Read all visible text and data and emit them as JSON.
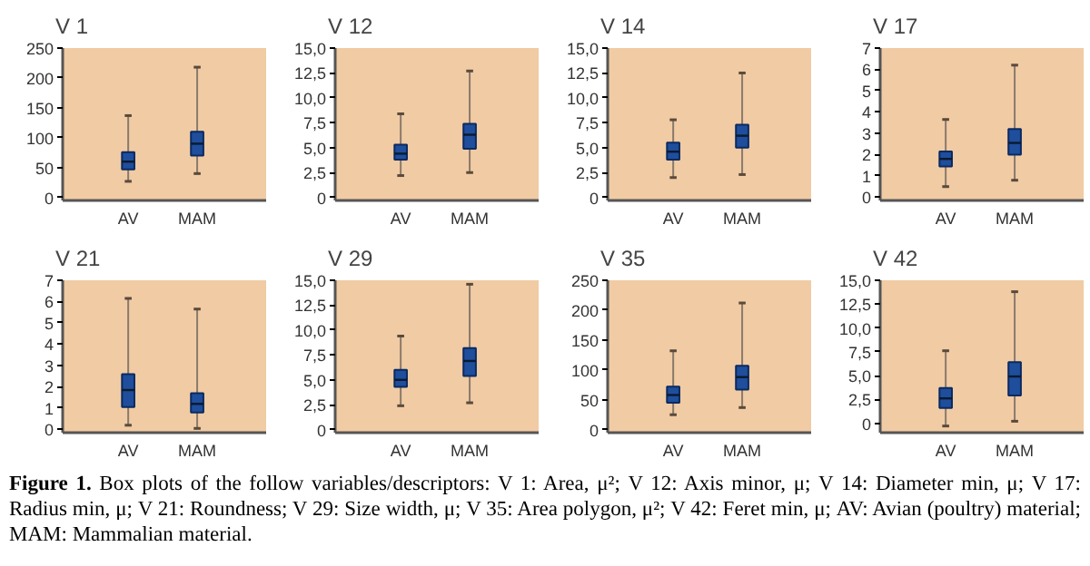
{
  "chart_data": [
    {
      "type": "box",
      "title": "V 1",
      "categories": [
        "AV",
        "MAM"
      ],
      "color": "#1f4e9c",
      "grid": false,
      "ylim": [
        -5,
        250
      ],
      "yticks": [
        0,
        50,
        100,
        150,
        200,
        250
      ],
      "boxes": [
        {
          "low": 27,
          "q1": 47,
          "median": 60,
          "q3": 76,
          "high": 137
        },
        {
          "low": 40,
          "q1": 70,
          "median": 90,
          "q3": 110,
          "high": 218
        }
      ]
    },
    {
      "type": "box",
      "title": "V 12",
      "categories": [
        "AV",
        "MAM"
      ],
      "color": "#1f4e9c",
      "grid": false,
      "ylim": [
        -0.3,
        15
      ],
      "yticks": [
        0,
        {
          "value": 2.5,
          "label": "2,5"
        },
        {
          "value": 5,
          "label": "5,0"
        },
        {
          "value": 7.5,
          "label": "7,5"
        },
        {
          "value": 10,
          "label": "10,0"
        },
        {
          "value": 12.5,
          "label": "12,5"
        },
        {
          "value": 15,
          "label": "15,0"
        }
      ],
      "boxes": [
        {
          "low": 2.2,
          "q1": 3.8,
          "median": 4.4,
          "q3": 5.3,
          "high": 8.4
        },
        {
          "low": 2.5,
          "q1": 4.9,
          "median": 6.3,
          "q3": 7.4,
          "high": 12.7
        }
      ]
    },
    {
      "type": "box",
      "title": "V 14",
      "categories": [
        "AV",
        "MAM"
      ],
      "color": "#1f4e9c",
      "grid": false,
      "ylim": [
        -0.3,
        15
      ],
      "yticks": [
        0,
        {
          "value": 2.5,
          "label": "2,5"
        },
        {
          "value": 5,
          "label": "5,0"
        },
        {
          "value": 7.5,
          "label": "7,5"
        },
        {
          "value": 10,
          "label": "10,0"
        },
        {
          "value": 12.5,
          "label": "12,5"
        },
        {
          "value": 15,
          "label": "15,0"
        }
      ],
      "boxes": [
        {
          "low": 2.0,
          "q1": 3.8,
          "median": 4.6,
          "q3": 5.5,
          "high": 7.8
        },
        {
          "low": 2.3,
          "q1": 5.0,
          "median": 6.2,
          "q3": 7.3,
          "high": 12.5
        }
      ]
    },
    {
      "type": "box",
      "title": "V 17",
      "categories": [
        "AV",
        "MAM"
      ],
      "color": "#1f4e9c",
      "grid": false,
      "ylim": [
        -0.15,
        7
      ],
      "yticks": [
        0,
        1,
        2,
        3,
        4,
        5,
        6,
        7
      ],
      "boxes": [
        {
          "low": 0.5,
          "q1": 1.45,
          "median": 1.8,
          "q3": 2.15,
          "high": 3.65
        },
        {
          "low": 0.8,
          "q1": 2.0,
          "median": 2.55,
          "q3": 3.2,
          "high": 6.2
        }
      ]
    },
    {
      "type": "box",
      "title": "V 21",
      "categories": [
        "AV",
        "MAM"
      ],
      "color": "#1f4e9c",
      "grid": false,
      "ylim": [
        -0.15,
        7
      ],
      "yticks": [
        0,
        1,
        2,
        3,
        4,
        5,
        6,
        7
      ],
      "boxes": [
        {
          "low": 0.2,
          "q1": 1.05,
          "median": 1.85,
          "q3": 2.6,
          "high": 6.15
        },
        {
          "low": 0.05,
          "q1": 0.8,
          "median": 1.2,
          "q3": 1.7,
          "high": 5.65
        }
      ]
    },
    {
      "type": "box",
      "title": "V 29",
      "categories": [
        "AV",
        "MAM"
      ],
      "color": "#1f4e9c",
      "grid": false,
      "ylim": [
        -0.3,
        15
      ],
      "yticks": [
        0,
        {
          "value": 2.5,
          "label": "2,5"
        },
        {
          "value": 5,
          "label": "5,0"
        },
        {
          "value": 7.5,
          "label": "7,5"
        },
        {
          "value": 10,
          "label": "10,0"
        },
        {
          "value": 12.5,
          "label": "12,5"
        },
        {
          "value": 15,
          "label": "15,0"
        }
      ],
      "boxes": [
        {
          "low": 2.4,
          "q1": 4.3,
          "median": 5.0,
          "q3": 6.0,
          "high": 9.4
        },
        {
          "low": 2.7,
          "q1": 5.4,
          "median": 6.9,
          "q3": 8.2,
          "high": 14.6
        }
      ]
    },
    {
      "type": "box",
      "title": "V 35",
      "categories": [
        "AV",
        "MAM"
      ],
      "color": "#1f4e9c",
      "grid": false,
      "ylim": [
        -5,
        250
      ],
      "yticks": [
        0,
        50,
        100,
        150,
        200,
        250
      ],
      "boxes": [
        {
          "low": 25,
          "q1": 45,
          "median": 58,
          "q3": 72,
          "high": 132
        },
        {
          "low": 37,
          "q1": 67,
          "median": 88,
          "q3": 107,
          "high": 212
        }
      ]
    },
    {
      "type": "box",
      "title": "V 42",
      "categories": [
        "AV",
        "MAM"
      ],
      "color": "#1f4e9c",
      "grid": false,
      "ylim": [
        -1,
        15
      ],
      "yticks": [
        0,
        {
          "value": 2.5,
          "label": "2,5"
        },
        {
          "value": 5,
          "label": "5,0"
        },
        {
          "value": 7.5,
          "label": "7,5"
        },
        {
          "value": 10,
          "label": "10,0"
        },
        {
          "value": 12.5,
          "label": "12,5"
        },
        {
          "value": 15,
          "label": "15,0"
        }
      ],
      "boxes": [
        {
          "low": -0.3,
          "q1": 1.6,
          "median": 2.6,
          "q3": 3.7,
          "high": 7.6
        },
        {
          "low": 0.2,
          "q1": 2.9,
          "median": 4.9,
          "q3": 6.4,
          "high": 13.8
        }
      ],
      "annotations": [
        "Figure 1.",
        "Box plots of the follow variables/descriptors: V 1: Area, μ²; V 12: Axis minor, μ; V 14: Diameter min, μ; V 17: Radius min, μ; V 21: Roundness; V 29: Size width, μ; V 35: Area polygon, μ²; V 42: Feret min, μ;  AV: Avian (poultry) material; MAM: Mammalian material."
      ]
    }
  ]
}
